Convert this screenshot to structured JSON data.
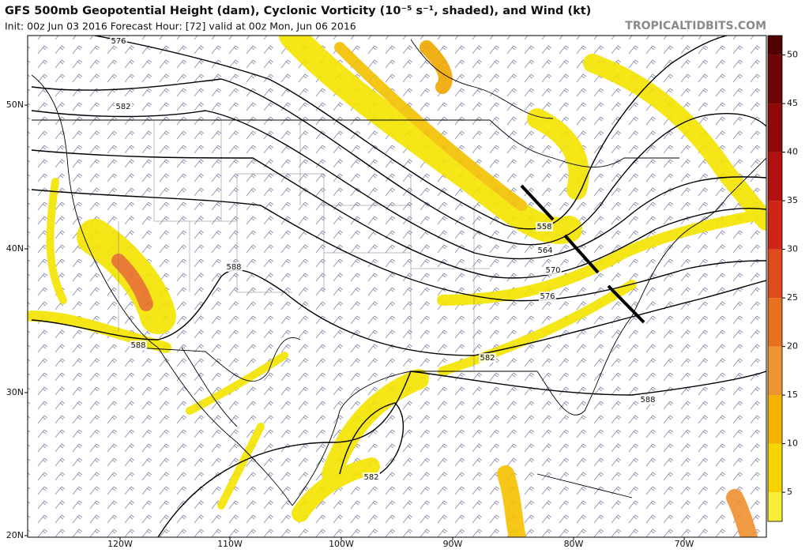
{
  "header": {
    "title": "GFS 500mb Geopotential Height (dam), Cyclonic Vorticity (10⁻⁵ s⁻¹, shaded), and Wind (kt)",
    "subtitle": "Init: 00z Jun 03 2016   Forecast Hour: [72]   valid at 00z Mon, Jun 06 2016",
    "brand": "TROPICALTIDBITS.COM"
  },
  "map": {
    "lat_labels": [
      "50N",
      "40N",
      "30N",
      "20N"
    ],
    "lon_labels": [
      "120W",
      "110W",
      "100W",
      "90W",
      "80W",
      "70W"
    ],
    "contour_labels": [
      "576",
      "582",
      "588",
      "588",
      "558",
      "564",
      "570",
      "576",
      "582",
      "588",
      "582"
    ]
  },
  "colorbar": {
    "lim": [
      2,
      52
    ],
    "ticks": [
      5,
      10,
      15,
      20,
      25,
      30,
      35,
      40,
      45,
      50
    ]
  }
}
